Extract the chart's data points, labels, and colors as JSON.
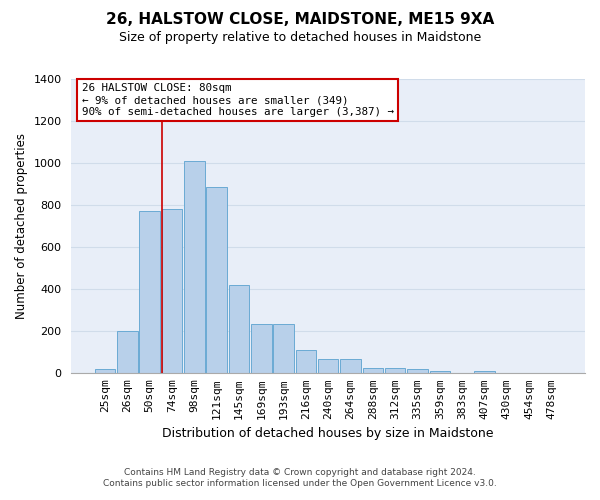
{
  "title": "26, HALSTOW CLOSE, MAIDSTONE, ME15 9XA",
  "subtitle": "Size of property relative to detached houses in Maidstone",
  "xlabel": "Distribution of detached houses by size in Maidstone",
  "ylabel": "Number of detached properties",
  "categories": [
    "25sqm",
    "26sqm",
    "50sqm",
    "74sqm",
    "98sqm",
    "121sqm",
    "145sqm",
    "169sqm",
    "193sqm",
    "216sqm",
    "240sqm",
    "264sqm",
    "288sqm",
    "312sqm",
    "335sqm",
    "359sqm",
    "383sqm",
    "407sqm",
    "430sqm",
    "454sqm",
    "478sqm"
  ],
  "bar_heights": [
    20,
    200,
    770,
    780,
    1010,
    885,
    420,
    235,
    235,
    110,
    70,
    68,
    25,
    25,
    20,
    10,
    0,
    10,
    0,
    0,
    0
  ],
  "bar_color": "#b8d0ea",
  "bar_edge_color": "#6aaad4",
  "grid_color": "#d0dcea",
  "background_color": "#e8eef8",
  "vline_color": "#cc0000",
  "vline_x": 2.575,
  "annotation_text": "26 HALSTOW CLOSE: 80sqm\n← 9% of detached houses are smaller (349)\n90% of semi-detached houses are larger (3,387) →",
  "annotation_box_color": "#ffffff",
  "annotation_box_edge_color": "#cc0000",
  "footer_line1": "Contains HM Land Registry data © Crown copyright and database right 2024.",
  "footer_line2": "Contains public sector information licensed under the Open Government Licence v3.0.",
  "ylim": [
    0,
    1400
  ],
  "yticks": [
    0,
    200,
    400,
    600,
    800,
    1000,
    1200,
    1400
  ],
  "title_fontsize": 11,
  "subtitle_fontsize": 9,
  "ylabel_fontsize": 8.5,
  "xlabel_fontsize": 9,
  "tick_fontsize": 8,
  "annotation_fontsize": 7.8,
  "footer_fontsize": 6.5
}
